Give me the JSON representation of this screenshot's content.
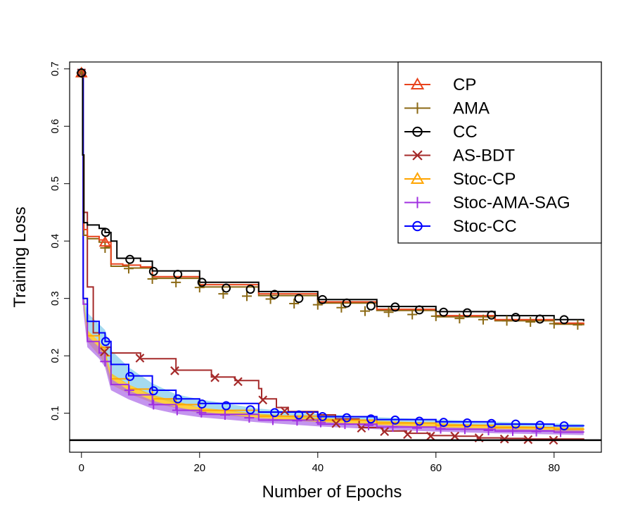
{
  "chart_data": {
    "type": "line",
    "title": "",
    "xlabel": "Number of Epochs",
    "ylabel": "Training Loss",
    "xlim": [
      -2,
      88
    ],
    "ylim": [
      0.032,
      0.712
    ],
    "xticks": [
      0,
      20,
      40,
      60,
      80
    ],
    "yticks": [
      0.1,
      0.2,
      0.3,
      0.4,
      0.5,
      0.6,
      0.7
    ],
    "xtick_labels": [
      "0",
      "20",
      "40",
      "60",
      "80"
    ],
    "ytick_labels": [
      "0.1",
      "0.2",
      "0.3",
      "0.4",
      "0.5",
      "0.6",
      "0.7"
    ],
    "reference_line": 0.053,
    "legend_position": "top-right",
    "series": [
      {
        "name": "CP",
        "color": "#E8431D",
        "marker": "triangle",
        "points": [
          [
            0,
            0.693
          ],
          [
            0.2,
            0.55
          ],
          [
            0.4,
            0.42
          ],
          [
            1,
            0.408
          ],
          [
            3,
            0.402
          ],
          [
            4,
            0.398
          ],
          [
            5,
            0.36
          ],
          [
            7,
            0.358
          ],
          [
            10,
            0.355
          ],
          [
            12,
            0.338
          ],
          [
            20,
            0.324
          ],
          [
            30,
            0.308
          ],
          [
            40,
            0.294
          ],
          [
            50,
            0.281
          ],
          [
            60,
            0.27
          ],
          [
            70,
            0.263
          ],
          [
            80,
            0.257
          ],
          [
            85,
            0.255
          ]
        ],
        "markers": [
          [
            0,
            0.693
          ],
          [
            4,
            0.398
          ]
        ]
      },
      {
        "name": "AMA",
        "color": "#8B6914",
        "marker": "plus",
        "points": [
          [
            0,
            0.693
          ],
          [
            0.2,
            0.55
          ],
          [
            0.4,
            0.41
          ],
          [
            1,
            0.404
          ],
          [
            3,
            0.398
          ],
          [
            4,
            0.39
          ],
          [
            5,
            0.356
          ],
          [
            8,
            0.353
          ],
          [
            12,
            0.335
          ],
          [
            20,
            0.32
          ],
          [
            30,
            0.305
          ],
          [
            40,
            0.292
          ],
          [
            50,
            0.279
          ],
          [
            60,
            0.268
          ],
          [
            70,
            0.261
          ],
          [
            80,
            0.255
          ],
          [
            85,
            0.253
          ]
        ],
        "markers": [
          [
            0,
            0.693
          ],
          [
            4,
            0.388
          ],
          [
            8,
            0.352
          ],
          [
            12,
            0.334
          ],
          [
            16,
            0.328
          ],
          [
            20,
            0.319
          ],
          [
            24,
            0.308
          ],
          [
            28,
            0.304
          ],
          [
            32,
            0.299
          ],
          [
            36,
            0.291
          ],
          [
            40,
            0.289
          ],
          [
            44,
            0.284
          ],
          [
            48,
            0.278
          ],
          [
            52,
            0.276
          ],
          [
            56,
            0.272
          ],
          [
            60,
            0.269
          ],
          [
            64,
            0.265
          ],
          [
            68,
            0.263
          ],
          [
            72,
            0.261
          ],
          [
            76,
            0.259
          ],
          [
            80,
            0.256
          ],
          [
            84,
            0.254
          ]
        ]
      },
      {
        "name": "CC",
        "color": "#000000",
        "marker": "circle",
        "points": [
          [
            0,
            0.693
          ],
          [
            0.2,
            0.55
          ],
          [
            0.4,
            0.432
          ],
          [
            1,
            0.428
          ],
          [
            3,
            0.422
          ],
          [
            4,
            0.415
          ],
          [
            5,
            0.4
          ],
          [
            6,
            0.37
          ],
          [
            10,
            0.365
          ],
          [
            12,
            0.348
          ],
          [
            20,
            0.328
          ],
          [
            30,
            0.312
          ],
          [
            40,
            0.298
          ],
          [
            50,
            0.286
          ],
          [
            60,
            0.277
          ],
          [
            70,
            0.27
          ],
          [
            80,
            0.263
          ],
          [
            85,
            0.26
          ]
        ],
        "markers": [
          [
            0,
            0.693
          ],
          [
            4.1,
            0.415
          ],
          [
            8.2,
            0.368
          ],
          [
            12.2,
            0.347
          ],
          [
            16.3,
            0.342
          ],
          [
            20.4,
            0.328
          ],
          [
            24.5,
            0.318
          ],
          [
            28.6,
            0.316
          ],
          [
            32.7,
            0.307
          ],
          [
            36.8,
            0.3
          ],
          [
            40.8,
            0.298
          ],
          [
            44.9,
            0.292
          ],
          [
            49,
            0.287
          ],
          [
            53.1,
            0.285
          ],
          [
            57.2,
            0.28
          ],
          [
            61.3,
            0.276
          ],
          [
            65.3,
            0.275
          ],
          [
            69.4,
            0.271
          ],
          [
            73.5,
            0.267
          ],
          [
            77.6,
            0.264
          ],
          [
            81.7,
            0.263
          ]
        ]
      },
      {
        "name": "AS-BDT",
        "color": "#A52A2A",
        "marker": "x",
        "points": [
          [
            0,
            0.693
          ],
          [
            0.3,
            0.45
          ],
          [
            1,
            0.32
          ],
          [
            2,
            0.24
          ],
          [
            3,
            0.215
          ],
          [
            5,
            0.205
          ],
          [
            10,
            0.195
          ],
          [
            16,
            0.175
          ],
          [
            22,
            0.163
          ],
          [
            26,
            0.157
          ],
          [
            30,
            0.143
          ],
          [
            30.5,
            0.125
          ],
          [
            33,
            0.11
          ],
          [
            35,
            0.103
          ],
          [
            40,
            0.097
          ],
          [
            43,
            0.09
          ],
          [
            47,
            0.075
          ],
          [
            51,
            0.069
          ],
          [
            55,
            0.065
          ],
          [
            59,
            0.061
          ],
          [
            63,
            0.06
          ],
          [
            67,
            0.057
          ],
          [
            71,
            0.056
          ],
          [
            75,
            0.055
          ],
          [
            80,
            0.055
          ],
          [
            85,
            0.056
          ]
        ],
        "markers": [
          [
            0,
            0.693
          ],
          [
            3.9,
            0.207
          ],
          [
            9.9,
            0.196
          ],
          [
            15.8,
            0.174
          ],
          [
            22.6,
            0.162
          ],
          [
            26.5,
            0.155
          ],
          [
            30.7,
            0.123
          ],
          [
            34.4,
            0.104
          ],
          [
            38.7,
            0.095
          ],
          [
            43.1,
            0.082
          ],
          [
            47.4,
            0.074
          ],
          [
            51.3,
            0.068
          ],
          [
            55.2,
            0.063
          ],
          [
            59.1,
            0.06
          ],
          [
            63.2,
            0.06
          ],
          [
            67.3,
            0.057
          ],
          [
            71.6,
            0.055
          ],
          [
            75.6,
            0.054
          ],
          [
            79.9,
            0.053
          ]
        ]
      },
      {
        "name": "Stoc-CP",
        "color": "#FFA500",
        "marker": "triangle",
        "points": [
          [
            0,
            0.693
          ],
          [
            0.3,
            0.3
          ],
          [
            1,
            0.235
          ],
          [
            3,
            0.215
          ],
          [
            4,
            0.2
          ],
          [
            5,
            0.16
          ],
          [
            8,
            0.142
          ],
          [
            12,
            0.125
          ],
          [
            16,
            0.115
          ],
          [
            20,
            0.105
          ],
          [
            30,
            0.095
          ],
          [
            40,
            0.088
          ],
          [
            50,
            0.083
          ],
          [
            60,
            0.079
          ],
          [
            70,
            0.075
          ],
          [
            80,
            0.072
          ],
          [
            85,
            0.071
          ]
        ],
        "markers": [
          [
            0,
            0.693
          ]
        ]
      },
      {
        "name": "Stoc-AMA-SAG",
        "color": "#A030E0",
        "marker": "plus",
        "points": [
          [
            0,
            0.693
          ],
          [
            0.3,
            0.29
          ],
          [
            1,
            0.225
          ],
          [
            3,
            0.205
          ],
          [
            4,
            0.19
          ],
          [
            5,
            0.15
          ],
          [
            8,
            0.132
          ],
          [
            12,
            0.115
          ],
          [
            16,
            0.105
          ],
          [
            20,
            0.098
          ],
          [
            30,
            0.088
          ],
          [
            40,
            0.081
          ],
          [
            50,
            0.076
          ],
          [
            60,
            0.072
          ],
          [
            70,
            0.069
          ],
          [
            80,
            0.067
          ],
          [
            85,
            0.066
          ]
        ],
        "markers": [
          [
            0,
            0.693
          ],
          [
            4,
            0.19
          ],
          [
            8.1,
            0.14
          ],
          [
            12.2,
            0.115
          ],
          [
            16.2,
            0.105
          ],
          [
            20.3,
            0.101
          ],
          [
            24.3,
            0.097
          ],
          [
            28.4,
            0.092
          ],
          [
            32.4,
            0.088
          ],
          [
            36.5,
            0.087
          ],
          [
            40.5,
            0.084
          ],
          [
            44.6,
            0.081
          ],
          [
            48.6,
            0.079
          ],
          [
            52.7,
            0.076
          ],
          [
            56.8,
            0.074
          ],
          [
            60.8,
            0.073
          ],
          [
            64.9,
            0.072
          ],
          [
            68.9,
            0.07
          ],
          [
            73,
            0.069
          ],
          [
            77,
            0.068
          ],
          [
            81.1,
            0.067
          ]
        ]
      },
      {
        "name": "Stoc-CC",
        "color": "#0000FF",
        "marker": "circle",
        "points": [
          [
            0,
            0.693
          ],
          [
            0.3,
            0.3
          ],
          [
            1,
            0.26
          ],
          [
            3,
            0.24
          ],
          [
            4,
            0.225
          ],
          [
            5,
            0.185
          ],
          [
            8,
            0.165
          ],
          [
            12,
            0.14
          ],
          [
            16,
            0.125
          ],
          [
            20,
            0.117
          ],
          [
            30,
            0.102
          ],
          [
            40,
            0.094
          ],
          [
            50,
            0.089
          ],
          [
            60,
            0.085
          ],
          [
            70,
            0.081
          ],
          [
            80,
            0.078
          ],
          [
            85,
            0.077
          ]
        ],
        "markers": [
          [
            0,
            0.693
          ],
          [
            4.1,
            0.225
          ],
          [
            8.2,
            0.164
          ],
          [
            12.2,
            0.139
          ],
          [
            16.3,
            0.125
          ],
          [
            20.4,
            0.116
          ],
          [
            24.5,
            0.113
          ],
          [
            28.6,
            0.106
          ],
          [
            32.7,
            0.101
          ],
          [
            36.8,
            0.097
          ],
          [
            40.8,
            0.094
          ],
          [
            44.9,
            0.092
          ],
          [
            49,
            0.09
          ],
          [
            53.1,
            0.088
          ],
          [
            57.2,
            0.086
          ],
          [
            61.3,
            0.084
          ],
          [
            65.3,
            0.083
          ],
          [
            69.4,
            0.082
          ],
          [
            73.5,
            0.081
          ],
          [
            77.6,
            0.079
          ],
          [
            81.7,
            0.078
          ]
        ]
      }
    ],
    "bands": [
      {
        "series": "Stoc-CC",
        "color": "#87CEEB",
        "x": [
          0,
          0.3,
          1,
          3,
          4,
          5,
          8,
          12,
          16,
          20,
          30,
          40,
          50,
          60,
          70,
          80,
          85
        ],
        "upper": [
          0.693,
          0.31,
          0.275,
          0.255,
          0.245,
          0.21,
          0.18,
          0.152,
          0.133,
          0.124,
          0.108,
          0.099,
          0.093,
          0.089,
          0.085,
          0.082,
          0.081
        ],
        "lower": [
          0.693,
          0.29,
          0.245,
          0.225,
          0.205,
          0.165,
          0.15,
          0.128,
          0.117,
          0.11,
          0.097,
          0.089,
          0.085,
          0.081,
          0.077,
          0.074,
          0.073
        ]
      },
      {
        "series": "Stoc-CP",
        "color": "#FFC000",
        "x": [
          0,
          0.3,
          1,
          3,
          4,
          5,
          8,
          12,
          16,
          20,
          30,
          40,
          50,
          60,
          70,
          80,
          85
        ],
        "upper": [
          0.693,
          0.31,
          0.245,
          0.225,
          0.21,
          0.17,
          0.15,
          0.132,
          0.121,
          0.11,
          0.099,
          0.092,
          0.087,
          0.083,
          0.079,
          0.076,
          0.075
        ],
        "lower": [
          0.693,
          0.29,
          0.225,
          0.2,
          0.185,
          0.15,
          0.134,
          0.118,
          0.109,
          0.1,
          0.091,
          0.084,
          0.079,
          0.075,
          0.071,
          0.068,
          0.067
        ]
      },
      {
        "series": "Stoc-AMA-SAG",
        "color": "#B070E8",
        "x": [
          0,
          0.3,
          1,
          3,
          4,
          5,
          8,
          12,
          16,
          20,
          30,
          40,
          50,
          60,
          70,
          80,
          85
        ],
        "upper": [
          0.693,
          0.3,
          0.235,
          0.215,
          0.2,
          0.16,
          0.14,
          0.122,
          0.111,
          0.103,
          0.092,
          0.085,
          0.08,
          0.076,
          0.073,
          0.071,
          0.07
        ],
        "lower": [
          0.693,
          0.28,
          0.215,
          0.195,
          0.18,
          0.14,
          0.124,
          0.108,
          0.099,
          0.093,
          0.084,
          0.077,
          0.072,
          0.068,
          0.065,
          0.063,
          0.062
        ]
      }
    ]
  }
}
